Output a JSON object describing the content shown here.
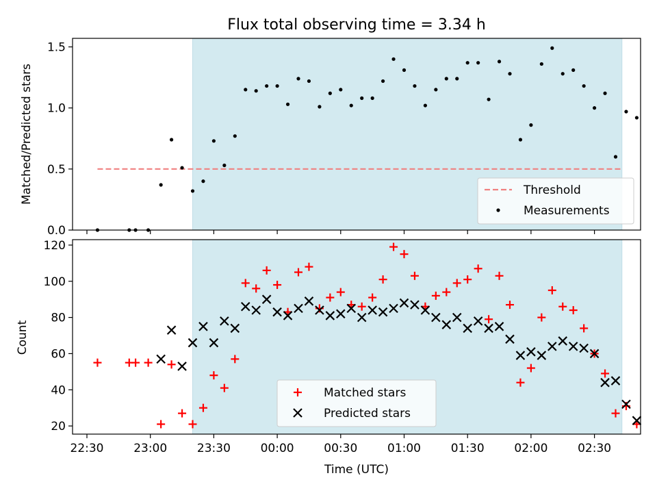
{
  "title": "Flux total observing time = 3.34 h",
  "chart_data": [
    {
      "type": "scatter",
      "ylabel": "Matched/Predicted stars",
      "ylim": [
        0,
        1.57
      ],
      "yticks": [
        0.0,
        0.5,
        1.0,
        1.5
      ],
      "yticklabels": [
        "0.0",
        "0.5",
        "1.0",
        "1.5"
      ],
      "shaded_span": [
        "23:20",
        "02:43"
      ],
      "threshold": {
        "name": "Threshold",
        "value": 0.5,
        "x_range": [
          "22:35",
          "02:43"
        ],
        "color": "#f08080"
      },
      "legend_location": "lower-right",
      "series": [
        {
          "name": "Measurements",
          "marker": "dot",
          "color": "#000000",
          "points": [
            [
              "22:35",
              0.0
            ],
            [
              "22:50",
              0.0
            ],
            [
              "22:53",
              0.0
            ],
            [
              "22:59",
              0.0
            ],
            [
              "23:05",
              0.37
            ],
            [
              "23:10",
              0.74
            ],
            [
              "23:15",
              0.51
            ],
            [
              "23:20",
              0.32
            ],
            [
              "23:25",
              0.4
            ],
            [
              "23:30",
              0.73
            ],
            [
              "23:35",
              0.53
            ],
            [
              "23:40",
              0.77
            ],
            [
              "23:45",
              1.15
            ],
            [
              "23:50",
              1.14
            ],
            [
              "23:55",
              1.18
            ],
            [
              "00:00",
              1.18
            ],
            [
              "00:05",
              1.03
            ],
            [
              "00:10",
              1.24
            ],
            [
              "00:15",
              1.22
            ],
            [
              "00:20",
              1.01
            ],
            [
              "00:25",
              1.12
            ],
            [
              "00:30",
              1.15
            ],
            [
              "00:35",
              1.02
            ],
            [
              "00:40",
              1.08
            ],
            [
              "00:45",
              1.08
            ],
            [
              "00:50",
              1.22
            ],
            [
              "00:55",
              1.4
            ],
            [
              "01:00",
              1.31
            ],
            [
              "01:05",
              1.18
            ],
            [
              "01:10",
              1.02
            ],
            [
              "01:15",
              1.15
            ],
            [
              "01:20",
              1.24
            ],
            [
              "01:25",
              1.24
            ],
            [
              "01:30",
              1.37
            ],
            [
              "01:35",
              1.37
            ],
            [
              "01:40",
              1.07
            ],
            [
              "01:45",
              1.38
            ],
            [
              "01:50",
              1.28
            ],
            [
              "01:55",
              0.74
            ],
            [
              "02:00",
              0.86
            ],
            [
              "02:05",
              1.36
            ],
            [
              "02:10",
              1.49
            ],
            [
              "02:15",
              1.28
            ],
            [
              "02:20",
              1.31
            ],
            [
              "02:25",
              1.18
            ],
            [
              "02:30",
              1.0
            ],
            [
              "02:35",
              1.12
            ],
            [
              "02:40",
              0.6
            ],
            [
              "02:45",
              0.97
            ],
            [
              "02:50",
              0.92
            ]
          ]
        }
      ]
    },
    {
      "type": "scatter",
      "xlabel": "Time (UTC)",
      "ylabel": "Count",
      "ylim": [
        15.5,
        123
      ],
      "yticks": [
        20,
        40,
        60,
        80,
        100,
        120
      ],
      "yticklabels": [
        "20",
        "40",
        "60",
        "80",
        "100",
        "120"
      ],
      "xticklabels": [
        "22:30",
        "23:00",
        "23:30",
        "00:00",
        "00:30",
        "01:00",
        "01:30",
        "02:00",
        "02:30"
      ],
      "shaded_span": [
        "23:20",
        "02:43"
      ],
      "legend_location": "lower-center",
      "series": [
        {
          "name": "Matched stars",
          "marker": "plus",
          "color": "#ff0000",
          "points": [
            [
              "22:35",
              55
            ],
            [
              "22:50",
              55
            ],
            [
              "22:53",
              55
            ],
            [
              "22:59",
              55
            ],
            [
              "23:05",
              21
            ],
            [
              "23:10",
              54
            ],
            [
              "23:15",
              27
            ],
            [
              "23:20",
              21
            ],
            [
              "23:25",
              30
            ],
            [
              "23:30",
              48
            ],
            [
              "23:35",
              41
            ],
            [
              "23:40",
              57
            ],
            [
              "23:45",
              99
            ],
            [
              "23:50",
              96
            ],
            [
              "23:55",
              106
            ],
            [
              "00:00",
              98
            ],
            [
              "00:05",
              83
            ],
            [
              "00:10",
              105
            ],
            [
              "00:15",
              108
            ],
            [
              "00:20",
              85
            ],
            [
              "00:25",
              91
            ],
            [
              "00:30",
              94
            ],
            [
              "00:35",
              87
            ],
            [
              "00:40",
              86
            ],
            [
              "00:45",
              91
            ],
            [
              "00:50",
              101
            ],
            [
              "00:55",
              119
            ],
            [
              "01:00",
              115
            ],
            [
              "01:05",
              103
            ],
            [
              "01:10",
              86
            ],
            [
              "01:15",
              92
            ],
            [
              "01:20",
              94
            ],
            [
              "01:25",
              99
            ],
            [
              "01:30",
              101
            ],
            [
              "01:35",
              107
            ],
            [
              "01:40",
              79
            ],
            [
              "01:45",
              103
            ],
            [
              "01:50",
              87
            ],
            [
              "01:55",
              44
            ],
            [
              "02:00",
              52
            ],
            [
              "02:05",
              80
            ],
            [
              "02:10",
              95
            ],
            [
              "02:15",
              86
            ],
            [
              "02:20",
              84
            ],
            [
              "02:25",
              74
            ],
            [
              "02:30",
              60
            ],
            [
              "02:35",
              49
            ],
            [
              "02:40",
              27
            ],
            [
              "02:45",
              31
            ],
            [
              "02:50",
              21
            ]
          ]
        },
        {
          "name": "Predicted stars",
          "marker": "x",
          "color": "#000000",
          "points": [
            [
              "23:05",
              57
            ],
            [
              "23:10",
              73
            ],
            [
              "23:15",
              53
            ],
            [
              "23:20",
              66
            ],
            [
              "23:25",
              75
            ],
            [
              "23:30",
              66
            ],
            [
              "23:35",
              78
            ],
            [
              "23:40",
              74
            ],
            [
              "23:45",
              86
            ],
            [
              "23:50",
              84
            ],
            [
              "23:55",
              90
            ],
            [
              "00:00",
              83
            ],
            [
              "00:05",
              81
            ],
            [
              "00:10",
              85
            ],
            [
              "00:15",
              89
            ],
            [
              "00:20",
              84
            ],
            [
              "00:25",
              81
            ],
            [
              "00:30",
              82
            ],
            [
              "00:35",
              85
            ],
            [
              "00:40",
              80
            ],
            [
              "00:45",
              84
            ],
            [
              "00:50",
              83
            ],
            [
              "00:55",
              85
            ],
            [
              "01:00",
              88
            ],
            [
              "01:05",
              87
            ],
            [
              "01:10",
              84
            ],
            [
              "01:15",
              80
            ],
            [
              "01:20",
              76
            ],
            [
              "01:25",
              80
            ],
            [
              "01:30",
              74
            ],
            [
              "01:35",
              78
            ],
            [
              "01:40",
              74
            ],
            [
              "01:45",
              75
            ],
            [
              "01:50",
              68
            ],
            [
              "01:55",
              59
            ],
            [
              "02:00",
              61
            ],
            [
              "02:05",
              59
            ],
            [
              "02:10",
              64
            ],
            [
              "02:15",
              67
            ],
            [
              "02:20",
              64
            ],
            [
              "02:25",
              63
            ],
            [
              "02:30",
              60
            ],
            [
              "02:35",
              44
            ],
            [
              "02:40",
              45
            ],
            [
              "02:45",
              32
            ],
            [
              "02:50",
              23
            ]
          ]
        }
      ]
    }
  ],
  "colors": {
    "span_fill": "#d3eaf0",
    "span_edge": "#c0dde6"
  }
}
